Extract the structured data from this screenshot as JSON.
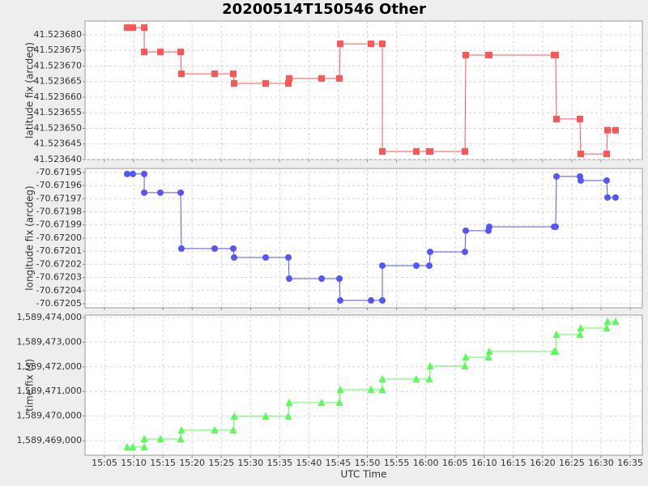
{
  "chart_data": {
    "type": "line",
    "title": "20200514T150546 Other",
    "x_label": "UTC Time",
    "x": [
      8.88,
      9.85,
      11.8,
      11.8,
      14.57,
      18.04,
      18.17,
      23.86,
      27.05,
      27.19,
      32.6,
      36.48,
      36.62,
      42.17,
      45.22,
      45.36,
      50.63,
      52.57,
      52.57,
      58.39,
      60.61,
      60.75,
      66.71,
      66.85,
      70.73,
      70.87,
      81.97,
      82.24,
      82.38,
      86.4,
      86.54,
      90.98,
      91.12,
      92.5
    ],
    "xlim": [
      1.67,
      97.08
    ],
    "xticks": [
      {
        "value": 5,
        "label": "15:05"
      },
      {
        "value": 10,
        "label": "15:10"
      },
      {
        "value": 15,
        "label": "15:15"
      },
      {
        "value": 20,
        "label": "15:20"
      },
      {
        "value": 25,
        "label": "15:25"
      },
      {
        "value": 30,
        "label": "15:30"
      },
      {
        "value": 35,
        "label": "15:35"
      },
      {
        "value": 40,
        "label": "15:40"
      },
      {
        "value": 45,
        "label": "15:45"
      },
      {
        "value": 50,
        "label": "15:50"
      },
      {
        "value": 55,
        "label": "15:55"
      },
      {
        "value": 60,
        "label": "16:00"
      },
      {
        "value": 65,
        "label": "16:05"
      },
      {
        "value": 70,
        "label": "16:10"
      },
      {
        "value": 75,
        "label": "16:15"
      },
      {
        "value": 80,
        "label": "16:20"
      },
      {
        "value": 85,
        "label": "16:25"
      },
      {
        "value": 90,
        "label": "16:30"
      },
      {
        "value": 95,
        "label": "16:35"
      }
    ],
    "grid": true,
    "panels": [
      {
        "y_label": "latitude fix (arcdeg)",
        "ylim": [
          41.52364,
          41.5236844
        ],
        "yticks": [
          {
            "value": 41.52364,
            "label": "41.523640"
          },
          41.523645,
          {
            "value": 41.52365,
            "label": "41.523650"
          },
          41.523655,
          {
            "value": 41.52366,
            "label": "41.523660"
          },
          41.523665,
          {
            "value": 41.52367,
            "label": "41.523670"
          },
          41.523675,
          {
            "value": 41.52368,
            "label": "41.523680"
          }
        ],
        "series": [
          {
            "color": "#ff5555",
            "marker": "square",
            "values": [
              41.5236823,
              41.5236823,
              41.5236823,
              41.5236745,
              41.5236745,
              41.5236745,
              41.5236675,
              41.5236675,
              41.5236675,
              41.5236644,
              41.5236644,
              41.5236644,
              41.523666,
              41.523666,
              41.523666,
              41.5236771,
              41.5236771,
              41.5236771,
              41.5236426,
              41.5236426,
              41.5236426,
              41.5236426,
              41.5236426,
              41.5236735,
              41.5236735,
              41.5236735,
              41.5236735,
              41.5236735,
              41.523653,
              41.523653,
              41.5236418,
              41.5236418,
              41.5236494,
              41.5236494
            ]
          }
        ]
      },
      {
        "y_label": "longitude fix (arcdeg)",
        "ylim": [
          -70.6720531,
          -70.671947
        ],
        "yticks": [
          -70.67205,
          -70.67204,
          -70.67203,
          -70.67202,
          -70.67201,
          {
            "value": -70.672,
            "label": "-70.67200"
          },
          -70.67199,
          -70.67198,
          -70.67197,
          -70.67196,
          -70.67195
        ],
        "series": [
          {
            "color": "#5555ff",
            "marker": "circle",
            "values": [
              -70.6719512,
              -70.6719512,
              -70.6719512,
              -70.6719654,
              -70.6719654,
              -70.6719654,
              -70.672008,
              -70.672008,
              -70.672008,
              -70.6720148,
              -70.6720148,
              -70.6720148,
              -70.6720309,
              -70.6720309,
              -70.6720309,
              -70.6720475,
              -70.6720475,
              -70.6720475,
              -70.672021,
              -70.672021,
              -70.672021,
              -70.6720105,
              -70.6720105,
              -70.6719944,
              -70.6719944,
              -70.6719914,
              -70.6719914,
              -70.6719914,
              -70.6719531,
              -70.6719531,
              -70.6719562,
              -70.6719562,
              -70.6719691,
              -70.6719691
            ]
          }
        ]
      },
      {
        "y_label": "time fix (s)",
        "ylim": [
          1589468408,
          1589474099
        ],
        "yticks": [
          {
            "value": 1589469000,
            "label": "1,589,469,000"
          },
          {
            "value": 1589470000,
            "label": "1,589,470,000"
          },
          {
            "value": 1589471000,
            "label": "1,589,471,000"
          },
          {
            "value": 1589472000,
            "label": "1,589,472,000"
          },
          {
            "value": 1589473000,
            "label": "1,589,473,000"
          },
          {
            "value": 1589474000,
            "label": "1,589,474,000"
          }
        ],
        "series": [
          {
            "color": "#55ff55",
            "marker": "triangle",
            "values": [
              1589468737,
              1589468737,
              1589468737,
              1589469066,
              1589469066,
              1589469066,
              1589469428,
              1589469428,
              1589469428,
              1589469987,
              1589469987,
              1589469987,
              1589470546,
              1589470546,
              1589470546,
              1589471072,
              1589471072,
              1589471072,
              1589471500,
              1589471500,
              1589471500,
              1589472026,
              1589472026,
              1589472388,
              1589472388,
              1589472618,
              1589472618,
              1589472618,
              1589473309,
              1589473309,
              1589473572,
              1589473572,
              1589473836,
              1589473836
            ]
          }
        ]
      }
    ]
  }
}
